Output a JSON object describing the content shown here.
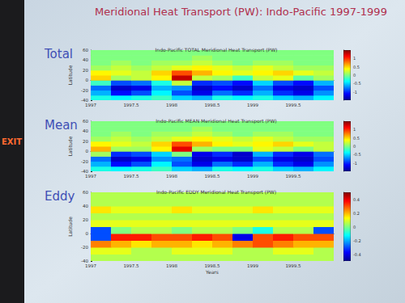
{
  "slide": {
    "title": "Meridional Heat Transport (PW): Indo-Pacific 1997-1999",
    "annotations": [
      "EXIT"
    ]
  },
  "chart_data": [
    {
      "type": "heatmap",
      "label": "Total",
      "title": "Indo-Pacific TOTAL Meridional Heat Transport (PW)",
      "ylabel": "Latitude",
      "xlim": [
        1997,
        2000
      ],
      "xticks": [
        1997,
        1997.5,
        1998,
        1998.5,
        1999,
        1999.5
      ],
      "ylim": [
        -40,
        60
      ],
      "yticks": [
        -40,
        -20,
        0,
        20,
        40,
        60
      ],
      "grid": false,
      "x_edges": [
        1997,
        1997.25,
        1997.5,
        1997.75,
        1998,
        1998.25,
        1998.5,
        1998.75,
        1999,
        1999.25,
        1999.5,
        1999.75,
        2000
      ],
      "y_edges": [
        -40,
        -30,
        -20,
        -10,
        0,
        10,
        20,
        30,
        40,
        50,
        60
      ],
      "cells": [
        [
          -0.3,
          -0.4,
          -0.3,
          -0.2,
          -0.5,
          -0.6,
          -0.3,
          -0.4,
          -0.3,
          -0.5,
          -0.6,
          -0.4
        ],
        [
          -0.6,
          -1.1,
          -0.9,
          -0.4,
          -0.9,
          -1.2,
          -0.8,
          -1.0,
          -0.6,
          -1.0,
          -1.2,
          -0.7
        ],
        [
          -0.8,
          -1.3,
          -1.2,
          -0.6,
          -0.7,
          -1.3,
          -1.1,
          -1.3,
          -0.8,
          -1.2,
          -1.3,
          -0.9
        ],
        [
          -0.2,
          -0.9,
          -0.8,
          -0.3,
          0.2,
          -1.0,
          -0.9,
          -1.1,
          -0.5,
          -0.9,
          -1.1,
          -0.6
        ],
        [
          0.5,
          0.1,
          0.2,
          0.4,
          1.3,
          0.2,
          0.1,
          -0.2,
          0.2,
          0.3,
          -0.1,
          0.1
        ],
        [
          0.4,
          0.3,
          0.2,
          0.5,
          0.9,
          0.6,
          0.4,
          0.3,
          0.4,
          0.5,
          0.3,
          0.2
        ],
        [
          0.1,
          0.2,
          0.1,
          0.2,
          0.3,
          0.4,
          0.3,
          0.2,
          0.3,
          0.2,
          0.1,
          0.1
        ],
        [
          0.0,
          0.1,
          0.0,
          0.1,
          0.1,
          0.2,
          0.1,
          0.0,
          0.1,
          0.1,
          0.0,
          0.0
        ],
        [
          0.0,
          0.0,
          0.0,
          0.0,
          0.0,
          0.1,
          0.0,
          0.0,
          0.0,
          0.0,
          0.0,
          0.0
        ],
        [
          0.0,
          0.0,
          0.0,
          0.0,
          0.0,
          0.0,
          0.0,
          0.0,
          0.0,
          0.0,
          0.0,
          0.0
        ]
      ],
      "colorbar": {
        "range": [
          -1.5,
          1.5
        ],
        "ticks": [
          -1,
          -0.5,
          0,
          0.5,
          1
        ]
      }
    },
    {
      "type": "heatmap",
      "label": "Mean",
      "title": "Indo-Pacific MEAN Meridional Heat Transport (PW)",
      "ylabel": "Latitude",
      "xlim": [
        1997,
        2000
      ],
      "xticks": [
        1997,
        1997.5,
        1998,
        1998.5,
        1999,
        1999.5
      ],
      "ylim": [
        -40,
        60
      ],
      "yticks": [
        -40,
        -20,
        0,
        20,
        40,
        60
      ],
      "grid": false,
      "x_edges": [
        1997,
        1997.25,
        1997.5,
        1997.75,
        1998,
        1998.25,
        1998.5,
        1998.75,
        1999,
        1999.25,
        1999.5,
        1999.75,
        2000
      ],
      "y_edges": [
        -40,
        -30,
        -20,
        -10,
        0,
        10,
        20,
        30,
        40,
        50,
        60
      ],
      "cells": [
        [
          -0.3,
          -0.4,
          -0.3,
          -0.2,
          -0.5,
          -0.6,
          -0.3,
          -0.4,
          -0.3,
          -0.5,
          -0.6,
          -0.4
        ],
        [
          -0.6,
          -1.1,
          -0.9,
          -0.4,
          -0.9,
          -1.2,
          -0.8,
          -1.0,
          -0.6,
          -1.0,
          -1.2,
          -0.7
        ],
        [
          -0.8,
          -1.3,
          -1.2,
          -0.7,
          -0.8,
          -1.3,
          -1.2,
          -1.3,
          -0.9,
          -1.2,
          -1.3,
          -0.9
        ],
        [
          0.1,
          -1.0,
          -0.9,
          -0.5,
          0.0,
          -1.2,
          -1.0,
          -1.3,
          -0.6,
          -1.0,
          -1.2,
          -0.8
        ],
        [
          0.6,
          0.1,
          0.1,
          0.4,
          1.2,
          0.1,
          0.0,
          0.0,
          0.3,
          0.2,
          0.0,
          0.2
        ],
        [
          0.4,
          0.3,
          0.2,
          0.5,
          0.9,
          0.6,
          0.4,
          0.3,
          0.4,
          0.5,
          0.3,
          0.2
        ],
        [
          0.1,
          0.2,
          0.1,
          0.2,
          0.3,
          0.4,
          0.3,
          0.2,
          0.3,
          0.2,
          0.1,
          0.1
        ],
        [
          0.0,
          0.1,
          0.0,
          0.1,
          0.1,
          0.2,
          0.1,
          0.0,
          0.1,
          0.1,
          0.0,
          0.0
        ],
        [
          0.0,
          0.0,
          0.0,
          0.0,
          0.0,
          0.1,
          0.0,
          0.0,
          0.0,
          0.0,
          0.0,
          0.0
        ],
        [
          0.0,
          0.0,
          0.0,
          0.0,
          0.0,
          0.0,
          0.0,
          0.0,
          0.0,
          0.0,
          0.0,
          0.0
        ]
      ],
      "colorbar": {
        "range": [
          -1.5,
          1.5
        ],
        "ticks": [
          -1,
          -0.5,
          0,
          0.5,
          1
        ]
      }
    },
    {
      "type": "heatmap",
      "label": "Eddy",
      "title": "Indo-Pacific EDDY Meridional Heat Transport (PW)",
      "xlabel": "Years",
      "ylabel": "Latitude",
      "xlim": [
        1997,
        2000
      ],
      "xticks": [
        1997,
        1997.5,
        1998,
        1998.5,
        1999,
        1999.5
      ],
      "ylim": [
        -40,
        60
      ],
      "yticks": [
        -40,
        -20,
        0,
        20,
        40,
        60
      ],
      "grid": false,
      "x_edges": [
        1997,
        1997.25,
        1997.5,
        1997.75,
        1998,
        1998.25,
        1998.5,
        1998.75,
        1999,
        1999.25,
        1999.5,
        1999.75,
        2000
      ],
      "y_edges": [
        -40,
        -30,
        -20,
        -10,
        0,
        10,
        20,
        30,
        40,
        50,
        60
      ],
      "cells": [
        [
          0.05,
          0.05,
          0.05,
          0.05,
          0.05,
          0.05,
          0.05,
          0.05,
          0.05,
          0.05,
          0.05,
          0.05
        ],
        [
          0.1,
          0.1,
          0.05,
          0.05,
          0.1,
          0.1,
          0.1,
          0.05,
          0.05,
          0.1,
          0.1,
          0.05
        ],
        [
          0.25,
          0.2,
          0.15,
          0.2,
          0.2,
          0.15,
          0.2,
          0.25,
          0.3,
          0.25,
          0.2,
          0.2
        ],
        [
          -0.3,
          0.35,
          0.35,
          0.3,
          0.3,
          0.35,
          0.3,
          -0.4,
          0.3,
          0.35,
          0.3,
          0.3
        ],
        [
          -0.3,
          0.0,
          0.05,
          0.05,
          0.0,
          0.05,
          0.05,
          0.0,
          -0.1,
          0.05,
          0.05,
          -0.3
        ],
        [
          0.1,
          0.1,
          0.1,
          0.1,
          0.1,
          0.1,
          0.1,
          0.1,
          0.1,
          0.1,
          0.1,
          0.1
        ],
        [
          0.05,
          0.05,
          0.05,
          0.05,
          0.05,
          0.05,
          0.05,
          0.05,
          0.05,
          0.05,
          0.05,
          0.05
        ],
        [
          0.15,
          0.1,
          0.1,
          0.1,
          0.15,
          0.1,
          0.1,
          0.1,
          0.15,
          0.1,
          0.1,
          0.1
        ],
        [
          0.05,
          0.05,
          0.05,
          0.05,
          0.05,
          0.05,
          0.05,
          0.05,
          0.05,
          0.05,
          0.05,
          0.05
        ],
        [
          0.05,
          0.05,
          0.05,
          0.05,
          0.05,
          0.05,
          0.05,
          0.05,
          0.05,
          0.05,
          0.05,
          0.05
        ]
      ],
      "colorbar": {
        "range": [
          -0.5,
          0.5
        ],
        "ticks": [
          -0.4,
          -0.2,
          0,
          0.2,
          0.4
        ]
      }
    }
  ]
}
